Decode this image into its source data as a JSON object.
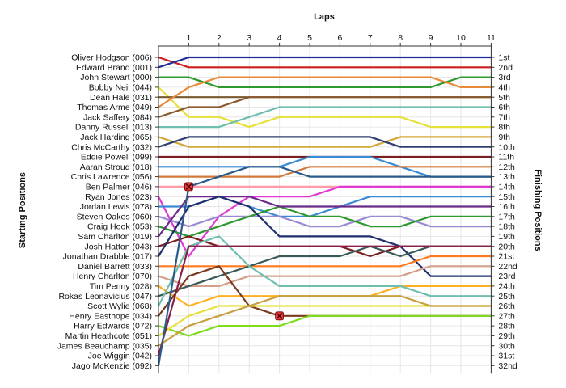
{
  "chart_data": {
    "type": "line",
    "title": "Laps",
    "xlabel": "Laps",
    "ylabel_left": "Starting Positions",
    "ylabel_right": "Finishing Positions",
    "x": [
      1,
      2,
      3,
      4,
      5,
      6,
      7,
      8,
      9,
      10,
      11
    ],
    "xlim": [
      0,
      11
    ],
    "ylim": [
      1,
      32
    ],
    "y_inverted": true,
    "grid": true,
    "legend": "none",
    "start_labels": [
      "Oliver Hodgson (006)",
      "Edward Brand (001)",
      "John Stewart (000)",
      "Bobby Neil (044)",
      "Dean Hale (031)",
      "Thomas Arme (049)",
      "Jack Saffery (084)",
      "Danny Russell (013)",
      "Jack Harding (065)",
      "Chris McCarthy (032)",
      "Eddie Powell (099)",
      "Aaran Stroud (018)",
      "Chris Lawrence (056)",
      "Ben Palmer (046)",
      "Ryan Jones (023)",
      "Jordan Lewis (078)",
      "Steven Oakes (060)",
      "Craig Hook (053)",
      "Sam Charlton (019)",
      "Josh Hatton (043)",
      "Jonathan Drabble (017)",
      "Daniel Barrett (033)",
      "Henry Charlton (070)",
      "Tim Penny (028)",
      "Rokas Leonavicius (047)",
      "Scott Wylie (068)",
      "Henry Easthope (034)",
      "Harry Edwards (072)",
      "Martin Heathcote (051)",
      "James Beauchamp (035)",
      "Joe Wiggin (042)",
      "Jago McKenzie (092)"
    ],
    "finish_labels": [
      "1st",
      "2nd",
      "3rd",
      "4th",
      "5th",
      "6th",
      "7th",
      "8th",
      "9th",
      "10th",
      "11th",
      "12th",
      "13th",
      "14th",
      "15th",
      "16th",
      "17th",
      "18th",
      "19th",
      "20th",
      "21st",
      "22nd",
      "23rd",
      "24th",
      "25th",
      "26th",
      "27th",
      "28th",
      "29th",
      "30th",
      "31st",
      "32nd"
    ],
    "series": [
      {
        "start": 1,
        "positions": [
          2,
          2,
          2,
          2,
          2,
          2,
          2,
          2,
          2,
          2,
          2
        ],
        "color": "#cc1f1f"
      },
      {
        "start": 2,
        "positions": [
          1,
          1,
          1,
          1,
          1,
          1,
          1,
          1,
          1,
          1,
          1
        ],
        "color": "#1f2f99"
      },
      {
        "start": 3,
        "positions": [
          3,
          4,
          4,
          4,
          4,
          4,
          4,
          4,
          4,
          3,
          3
        ],
        "color": "#2e9a2e"
      },
      {
        "start": 4,
        "positions": [
          7,
          7,
          8,
          7,
          7,
          7,
          7,
          7,
          8,
          8,
          8
        ],
        "color": "#e8e03a"
      },
      {
        "start": 5,
        "positions": [
          5,
          5,
          5,
          5,
          5,
          5,
          5,
          5,
          5,
          5,
          5
        ],
        "color": "#7a5a2e"
      },
      {
        "start": 6,
        "positions": [
          4,
          3,
          3,
          3,
          3,
          3,
          3,
          3,
          3,
          4,
          4
        ],
        "color": "#e88a3a"
      },
      {
        "start": 7,
        "positions": [
          6,
          6,
          5,
          5,
          5,
          5,
          5,
          5,
          5,
          5,
          5
        ],
        "color": "#8a5a2e"
      },
      {
        "start": 8,
        "positions": [
          8,
          8,
          7,
          6,
          6,
          6,
          6,
          6,
          6,
          6,
          6
        ],
        "color": "#6fbfb0"
      },
      {
        "start": 9,
        "positions": [
          10,
          10,
          10,
          10,
          10,
          10,
          10,
          9,
          9,
          9,
          9
        ],
        "color": "#d4a73a"
      },
      {
        "start": 10,
        "positions": [
          9,
          9,
          9,
          9,
          9,
          9,
          9,
          10,
          10,
          10,
          10
        ],
        "color": "#2f3f6f"
      },
      {
        "start": 11,
        "positions": [
          11,
          11,
          11,
          11,
          11,
          11,
          11,
          11,
          11,
          11,
          11
        ],
        "color": "#7a1f1f"
      },
      {
        "start": 12,
        "positions": [
          12,
          12,
          12,
          12,
          11,
          11,
          11,
          12,
          13,
          13,
          13
        ],
        "color": "#3a8ad4"
      },
      {
        "start": 13,
        "positions": [
          13,
          13,
          13,
          13,
          12,
          12,
          12,
          12,
          12,
          12,
          12
        ],
        "color": "#d4783a"
      },
      {
        "start": 14,
        "positions": [
          14,
          14,
          14,
          14,
          14,
          14,
          14,
          14,
          14,
          14,
          14
        ],
        "color": "#ff9aa8"
      },
      {
        "start": 15,
        "positions": [
          21,
          17,
          15,
          15,
          15,
          14,
          14,
          14,
          14,
          14,
          14
        ],
        "color": "#e03ad4"
      },
      {
        "start": 16,
        "positions": [
          16,
          15,
          16,
          17,
          17,
          16,
          15,
          15,
          15,
          15,
          15
        ],
        "color": "#3a8ad4"
      },
      {
        "start": 17,
        "positions": [
          18,
          17,
          17,
          17,
          18,
          18,
          17,
          17,
          18,
          18,
          18
        ],
        "color": "#9a8ad4"
      },
      {
        "start": 18,
        "positions": [
          19,
          18,
          17,
          16,
          17,
          17,
          18,
          18,
          17,
          17,
          17
        ],
        "color": "#2e9a2e"
      },
      {
        "start": 19,
        "positions": [
          15,
          15,
          15,
          16,
          16,
          16,
          16,
          16,
          16,
          16,
          16
        ],
        "color": "#6a2a8a"
      },
      {
        "start": 20,
        "positions": [
          19,
          20,
          20,
          20,
          20,
          20,
          21,
          20,
          20,
          20,
          20
        ],
        "color": "#7a1f1f"
      },
      {
        "start": 21,
        "positions": [
          16,
          15,
          16,
          19,
          19,
          19,
          19,
          20,
          23,
          23,
          23
        ],
        "color": "#1f2f6f"
      },
      {
        "start": 22,
        "positions": [
          22,
          22,
          22,
          22,
          22,
          22,
          22,
          22,
          21,
          21,
          21
        ],
        "color": "#ff7a1f"
      },
      {
        "start": 23,
        "positions": [
          24,
          24,
          23,
          23,
          23,
          23,
          23,
          23,
          22,
          22,
          22
        ],
        "color": "#d4a08a"
      },
      {
        "start": 24,
        "positions": [
          26,
          25,
          25,
          25,
          25,
          25,
          25,
          24,
          24,
          24,
          24
        ],
        "color": "#ffb020"
      },
      {
        "start": 25,
        "positions": [
          24,
          23,
          22,
          21,
          21,
          21,
          20,
          21,
          20,
          20,
          20
        ],
        "color": "#3a5a5a"
      },
      {
        "start": 26,
        "positions": [
          20,
          19,
          22,
          24,
          24,
          24,
          24,
          24,
          25,
          25,
          25
        ],
        "color": "#6fbfb0"
      },
      {
        "start": 27,
        "positions": [
          23,
          22,
          26,
          27,
          27,
          27,
          27,
          27,
          27,
          27,
          27
        ],
        "color": "#7a3a1f"
      },
      {
        "start": 28,
        "positions": [
          29,
          28,
          28,
          28,
          27,
          27,
          27,
          27,
          27,
          27,
          27
        ],
        "color": "#7fdc1f"
      },
      {
        "start": 29,
        "positions": [
          27,
          26,
          26,
          26,
          26,
          26,
          26,
          26,
          26,
          26,
          26
        ],
        "color": "#e8e03a"
      },
      {
        "start": 30,
        "positions": [
          28,
          27,
          26,
          25,
          25,
          25,
          25,
          25,
          26,
          26,
          26
        ],
        "color": "#c8a040"
      },
      {
        "start": 31,
        "positions": [
          20,
          20,
          20,
          20,
          20,
          20,
          20,
          20,
          20,
          20,
          20
        ],
        "color": "#8a1f4a"
      },
      {
        "start": 32,
        "positions": [
          14,
          13,
          12,
          12,
          13,
          13,
          13,
          13,
          13,
          13,
          13
        ],
        "color": "#2a5a8a"
      }
    ],
    "retirements": [
      {
        "lap": 1,
        "position": 14
      },
      {
        "lap": 4,
        "position": 27
      }
    ]
  }
}
